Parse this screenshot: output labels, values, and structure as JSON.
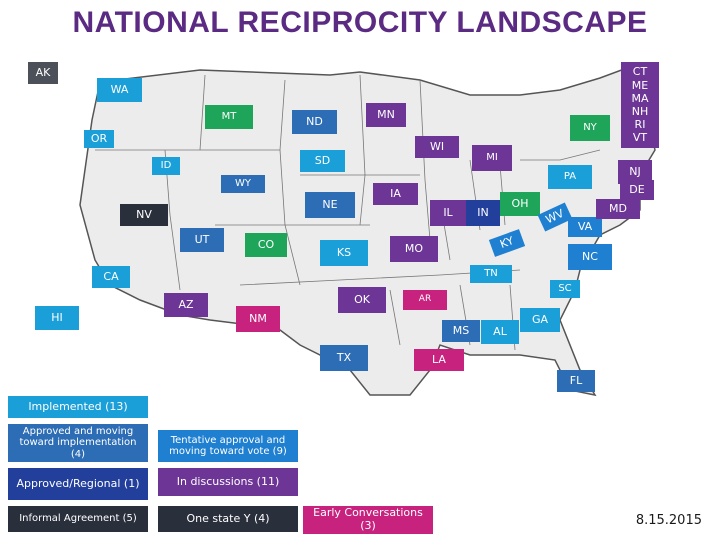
{
  "title": "NATIONAL RECIPROCITY LANDSCAPE",
  "date": "8.15.2015",
  "colors": {
    "implemented": "#1a9fd8",
    "moving": "#2d6db5",
    "tentative": "#1f7fd0",
    "approved": "#233f9c",
    "discussion": "#6d3696",
    "one_state": "#2a2f3c",
    "early": "#c8227f",
    "informal": "#2a2f3c",
    "map_fill": "#ececec",
    "map_border": "#555555"
  },
  "states": {
    "AK": "AK",
    "WA": "WA",
    "OR": "OR",
    "CA": "CA",
    "HI": "HI",
    "ID": "ID",
    "MT": "MT",
    "WY": "WY",
    "NV": "NV",
    "UT": "UT",
    "CO": "CO",
    "AZ": "AZ",
    "NM": "NM",
    "ND": "ND",
    "SD": "SD",
    "NE": "NE",
    "KS": "KS",
    "OK": "OK",
    "TX": "TX",
    "MN": "MN",
    "IA": "IA",
    "MO": "MO",
    "AR": "AR",
    "LA": "LA",
    "WI": "WI",
    "IL": "IL",
    "MI": "MI",
    "IN": "IN",
    "OH": "OH",
    "KY": "KY",
    "TN": "TN",
    "MS": "MS",
    "AL": "AL",
    "GA": "GA",
    "FL": "FL",
    "SC": "SC",
    "NC": "NC",
    "VA": "VA",
    "WV": "WV",
    "PA": "PA",
    "NY": "NY",
    "NJ": "NJ",
    "DE": "DE",
    "MD": "MD",
    "NE_GROUP": "CT\nME\nMA\nNH\nRI\nVT"
  },
  "legend": {
    "implemented": "Implemented  (13)",
    "moving": "Approved and moving toward implementation (4)",
    "tentative": "Tentative approval and moving toward vote (9)",
    "approved": "Approved/Regional (1)",
    "discussion": "In discussions (11)",
    "informal": "Informal Agreement (5)",
    "one_state": "One state Y (4)",
    "early": "Early Conversations (3)"
  }
}
